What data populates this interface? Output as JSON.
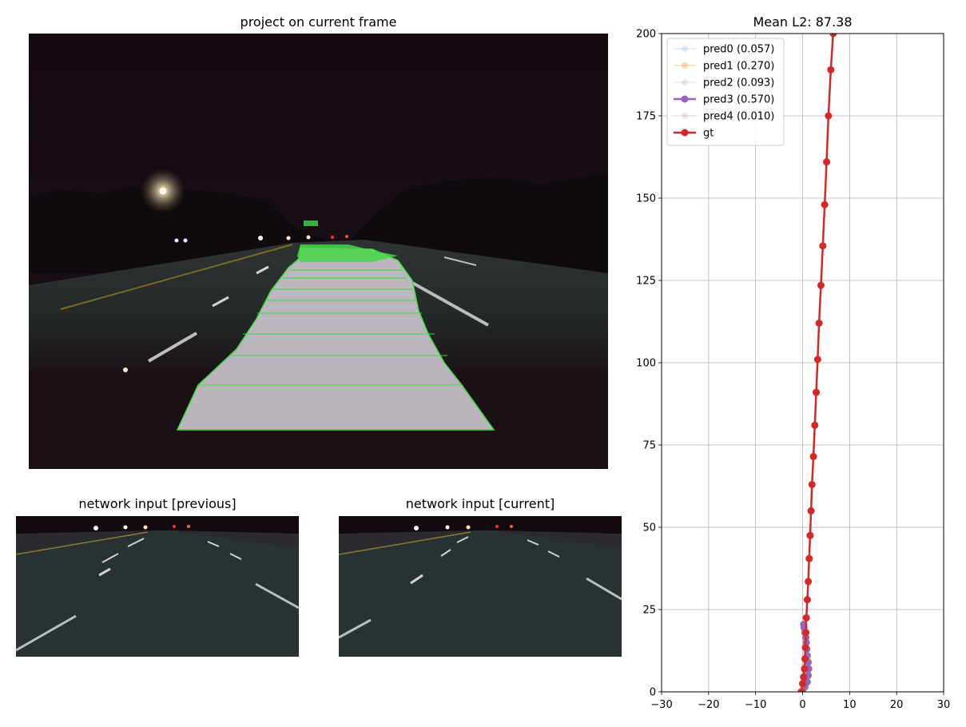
{
  "panels": {
    "main_title": "project on current frame",
    "prev_title": "network input [previous]",
    "curr_title": "network input [current]"
  },
  "colors": {
    "path_fill": "#c9c2cc",
    "path_edge": "#3ddb3d",
    "gt": "#d62728",
    "pred0": "#1f77b4",
    "pred1": "#ff7f0e",
    "pred2": "#2ca02c",
    "pred3": "#9467bd",
    "pred4": "#8c564b"
  },
  "chart_data": {
    "type": "line",
    "title": "Mean L2: 87.38",
    "xlabel": "",
    "ylabel": "",
    "xlim": [
      -30,
      30
    ],
    "ylim": [
      0,
      200
    ],
    "xticks": [
      "−30",
      "−20",
      "−10",
      "0",
      "10",
      "20",
      "30"
    ],
    "yticks": [
      "0",
      "25",
      "50",
      "75",
      "100",
      "125",
      "150",
      "175",
      "200"
    ],
    "grid": true,
    "legend_position": "top-left",
    "series": [
      {
        "name": "pred0 (0.057)",
        "key": "pred0",
        "alpha": 0.15,
        "x": [
          0.0,
          0.1,
          0.2,
          0.3,
          0.4,
          0.5,
          0.6
        ],
        "y": [
          0,
          2,
          4,
          6,
          8,
          10,
          12
        ]
      },
      {
        "name": "pred1 (0.270)",
        "key": "pred1",
        "alpha": 0.3,
        "x": [
          0.0,
          0.2,
          0.4,
          0.6,
          0.8,
          1.0,
          1.2
        ],
        "y": [
          0,
          1,
          2,
          3,
          4,
          5,
          6
        ]
      },
      {
        "name": "pred2 (0.093)",
        "key": "pred2",
        "alpha": 0.15,
        "x": [
          0.0,
          0.2,
          0.4,
          0.6,
          0.8,
          0.9,
          1.0
        ],
        "y": [
          0,
          1.5,
          3,
          4.5,
          6,
          7.5,
          9
        ]
      },
      {
        "name": "pred3 (0.570)",
        "key": "pred3",
        "alpha": 1.0,
        "x": [
          0.0,
          0.5,
          1.0,
          1.2,
          1.3,
          1.2,
          1.0,
          0.9,
          0.8,
          0.7,
          0.5,
          0.3,
          0.2
        ],
        "y": [
          0,
          1.5,
          3,
          5,
          7,
          9,
          11,
          13,
          15,
          16.5,
          18,
          19.5,
          20.5
        ]
      },
      {
        "name": "pred4 (0.010)",
        "key": "pred4",
        "alpha": 0.15,
        "x": [
          0.0,
          0.1,
          0.2,
          0.3,
          0.4
        ],
        "y": [
          0,
          1,
          2,
          3,
          4
        ]
      },
      {
        "name": "gt",
        "key": "gt",
        "alpha": 1.0,
        "x": [
          -0.3,
          0.0,
          0.2,
          0.4,
          0.5,
          0.6,
          0.7,
          0.8,
          1.0,
          1.2,
          1.4,
          1.6,
          1.8,
          2.0,
          2.3,
          2.6,
          2.9,
          3.2,
          3.5,
          3.9,
          4.3,
          4.7,
          5.1,
          5.5,
          6.0,
          6.5,
          7.0
        ],
        "y": [
          0,
          2.5,
          4.5,
          7,
          10,
          13.5,
          18,
          22.5,
          28,
          33.5,
          40.5,
          47.5,
          55,
          63,
          71.5,
          81,
          91,
          101,
          112,
          123.5,
          135.5,
          148,
          161,
          175,
          189,
          200,
          205
        ]
      }
    ]
  }
}
